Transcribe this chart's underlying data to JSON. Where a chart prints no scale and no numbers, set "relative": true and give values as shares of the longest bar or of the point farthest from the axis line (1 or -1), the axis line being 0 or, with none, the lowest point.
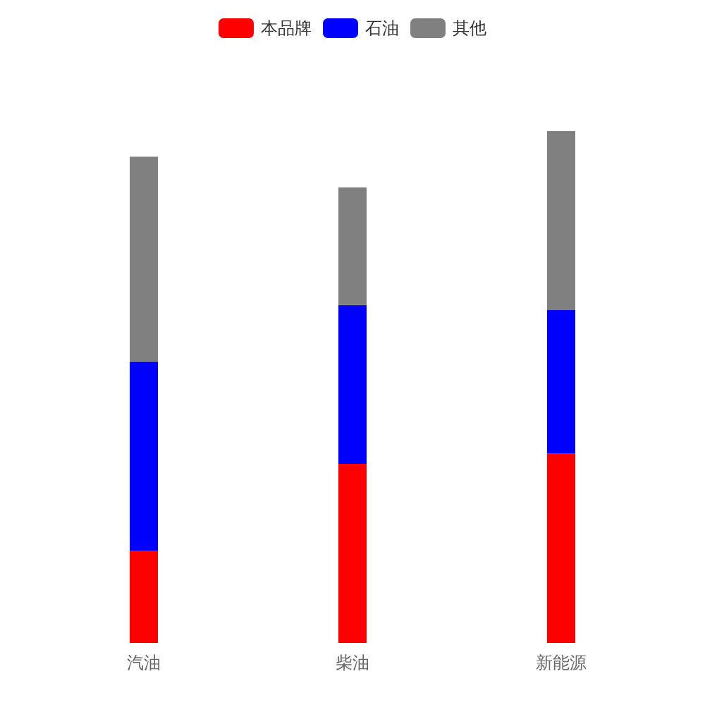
{
  "chart_data": {
    "type": "bar",
    "relative": true,
    "stacked": true,
    "legend": "top",
    "categories": [
      "汽油",
      "柴油",
      "新能源"
    ],
    "series": [
      {
        "name": "本品牌",
        "color": "#ff0000",
        "values": [
          0.18,
          0.35,
          0.37
        ]
      },
      {
        "name": "石油",
        "color": "#0000ff",
        "values": [
          0.37,
          0.31,
          0.28
        ]
      },
      {
        "name": "其他",
        "color": "#808080",
        "values": [
          0.4,
          0.23,
          0.35
        ]
      }
    ]
  }
}
